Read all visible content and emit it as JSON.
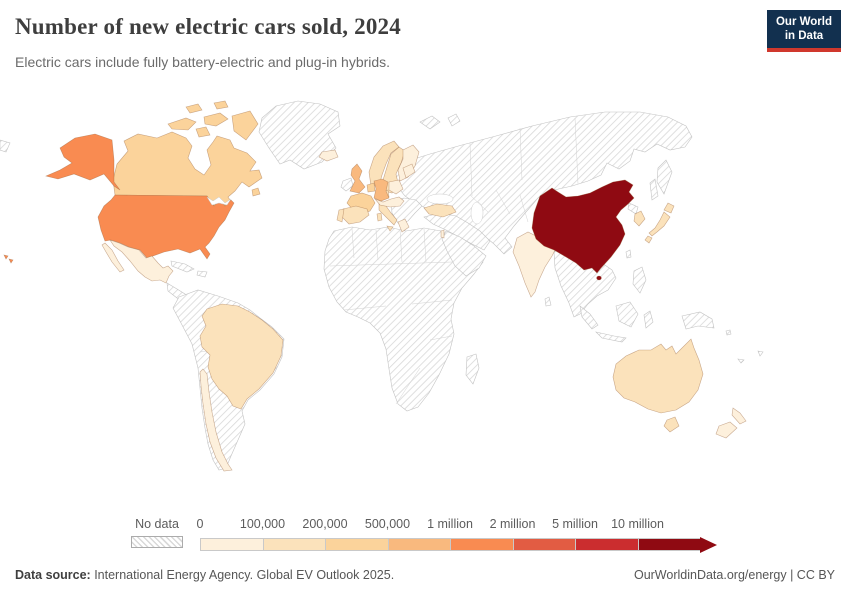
{
  "header": {
    "title": "Number of new electric cars sold, 2024",
    "subtitle": "Electric cars include fully battery-electric and plug-in hybrids.",
    "logo": {
      "line1": "Our World",
      "line2": "in Data",
      "bg": "#12304f",
      "accent": "#d0382d"
    }
  },
  "legend": {
    "no_data_label": "No data",
    "buckets": [
      {
        "label": "0",
        "color": "#FDF0DC"
      },
      {
        "label": "100,000",
        "color": "#FBE2BB"
      },
      {
        "label": "200,000",
        "color": "#FBD39B"
      },
      {
        "label": "500,000",
        "color": "#F9B97E"
      },
      {
        "label": "1 million",
        "color": "#F98B51"
      },
      {
        "label": "2 million",
        "color": "#E25C43"
      },
      {
        "label": "5 million",
        "color": "#CB2D2F"
      },
      {
        "label": "10 million",
        "color": "#8F0A12"
      }
    ],
    "arrow_color": "#8F0A12"
  },
  "map": {
    "countries": {
      "usa": 4,
      "hawaii": 4,
      "canada": 2,
      "canada-islands": 2,
      "newfoundland": 2,
      "mexico": 0,
      "baja": 0,
      "brazil": 1,
      "chile": 0,
      "uk": 3,
      "germany": 3,
      "france": 2,
      "benelux": 2,
      "norway": 1,
      "sweden": 1,
      "finland": 0,
      "denmark": 1,
      "iceland": 0,
      "spain": 1,
      "portugal": 1,
      "italy": 1,
      "sicily": 1,
      "sardinia": 1,
      "poland": 0,
      "central-europe": 0,
      "baltics": 0,
      "greece": 0,
      "turkey": 1,
      "israel": 0,
      "india": 0,
      "south-asia-patch": 0,
      "china": 7,
      "hainan": 7,
      "south-korea": 1,
      "japan": 1,
      "australia": 1,
      "tasmania": 1,
      "new-zealand": 0
    }
  },
  "footer": {
    "source_label": "Data source:",
    "source_text": " International Energy Agency. Global EV Outlook 2025.",
    "credit_link": "OurWorldinData.org/energy",
    "credit_sep": " | ",
    "credit_license": "CC BY"
  },
  "chart_data": {
    "type": "choropleth-map",
    "title": "Number of new electric cars sold, 2024",
    "subtitle": "Electric cars include fully battery-electric and plug-in hybrids.",
    "unit": "new electric cars sold in 2024 (battery-electric + plug-in hybrid)",
    "legend_position": "bottom",
    "color_scale": {
      "kind": "threshold",
      "tick_labels": [
        "0",
        "100,000",
        "200,000",
        "500,000",
        "1 million",
        "2 million",
        "5 million",
        "10 million"
      ],
      "colors": [
        "#FDF0DC",
        "#FBE2BB",
        "#FBD39B",
        "#F9B97E",
        "#F98B51",
        "#E25C43",
        "#CB2D2F",
        "#8F0A12"
      ],
      "no_data_style": "diagonal-hatch"
    },
    "regions": [
      {
        "name": "China",
        "bucket": "10 million+"
      },
      {
        "name": "United States",
        "bucket": "1-2 million"
      },
      {
        "name": "United Kingdom",
        "bucket": "500,000-1 million"
      },
      {
        "name": "Germany",
        "bucket": "500,000-1 million"
      },
      {
        "name": "France",
        "bucket": "200,000-500,000"
      },
      {
        "name": "Belgium & Netherlands",
        "bucket": "200,000-500,000"
      },
      {
        "name": "Canada",
        "bucket": "200,000-500,000"
      },
      {
        "name": "Norway",
        "bucket": "100,000-200,000"
      },
      {
        "name": "Sweden",
        "bucket": "100,000-200,000"
      },
      {
        "name": "Denmark",
        "bucket": "100,000-200,000"
      },
      {
        "name": "Spain",
        "bucket": "100,000-200,000"
      },
      {
        "name": "Portugal",
        "bucket": "100,000-200,000"
      },
      {
        "name": "Italy",
        "bucket": "100,000-200,000"
      },
      {
        "name": "Turkey",
        "bucket": "100,000-200,000"
      },
      {
        "name": "Japan",
        "bucket": "100,000-200,000"
      },
      {
        "name": "South Korea",
        "bucket": "100,000-200,000"
      },
      {
        "name": "Brazil",
        "bucket": "100,000-200,000"
      },
      {
        "name": "Australia",
        "bucket": "100,000-200,000"
      },
      {
        "name": "India",
        "bucket": "0-100,000"
      },
      {
        "name": "Mexico",
        "bucket": "0-100,000"
      },
      {
        "name": "Chile",
        "bucket": "0-100,000"
      },
      {
        "name": "Finland",
        "bucket": "0-100,000"
      },
      {
        "name": "Poland",
        "bucket": "0-100,000"
      },
      {
        "name": "Central Europe (Austria, Switzerland, Czechia, Hungary)",
        "bucket": "0-100,000"
      },
      {
        "name": "Baltic states",
        "bucket": "0-100,000"
      },
      {
        "name": "Greece",
        "bucket": "0-100,000"
      },
      {
        "name": "Iceland",
        "bucket": "0-100,000"
      },
      {
        "name": "Israel",
        "bucket": "0-100,000"
      },
      {
        "name": "New Zealand",
        "bucket": "0-100,000"
      },
      {
        "name": "Russia",
        "bucket": "No data"
      },
      {
        "name": "Greenland",
        "bucket": "No data"
      },
      {
        "name": "Most of Africa",
        "bucket": "No data"
      },
      {
        "name": "Middle East",
        "bucket": "No data"
      },
      {
        "name": "Central & Southeast Asia",
        "bucket": "No data"
      },
      {
        "name": "Most of South & Central America and the Caribbean",
        "bucket": "No data"
      }
    ]
  }
}
